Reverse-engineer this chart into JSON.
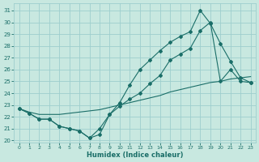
{
  "xlabel": "Humidex (Indice chaleur)",
  "bg_color": "#c8e8e0",
  "grid_color": "#9ecece",
  "line_color": "#1a6e68",
  "xlim": [
    -0.5,
    23.5
  ],
  "ylim": [
    19.8,
    31.6
  ],
  "xticks": [
    0,
    1,
    2,
    3,
    4,
    5,
    6,
    7,
    8,
    9,
    10,
    11,
    12,
    13,
    14,
    15,
    16,
    17,
    18,
    19,
    20,
    21,
    22,
    23
  ],
  "yticks": [
    20,
    21,
    22,
    23,
    24,
    25,
    26,
    27,
    28,
    29,
    30,
    31
  ],
  "series1_x": [
    0,
    1,
    2,
    3,
    4,
    5,
    6,
    7,
    8,
    9,
    10,
    11,
    12,
    13,
    14,
    15,
    16,
    17,
    18,
    19,
    20,
    21,
    22,
    23
  ],
  "series1_y": [
    22.7,
    22.3,
    21.8,
    21.8,
    21.2,
    21.0,
    20.8,
    20.2,
    20.5,
    22.2,
    22.9,
    23.5,
    24.0,
    24.8,
    25.5,
    26.8,
    27.3,
    27.8,
    29.3,
    30.0,
    25.0,
    26.0,
    25.0,
    24.9
  ],
  "series2_x": [
    0,
    1,
    2,
    3,
    4,
    5,
    6,
    7,
    8,
    9,
    10,
    11,
    12,
    13,
    14,
    15,
    16,
    17,
    18,
    19,
    20,
    21,
    22,
    23
  ],
  "series2_y": [
    22.7,
    22.3,
    21.8,
    21.8,
    21.2,
    21.0,
    20.8,
    20.2,
    21.0,
    22.2,
    23.2,
    24.7,
    26.0,
    26.8,
    27.6,
    28.3,
    28.8,
    29.2,
    31.0,
    29.9,
    28.2,
    26.7,
    25.3,
    24.9
  ],
  "series3_x": [
    0,
    1,
    2,
    3,
    4,
    5,
    6,
    7,
    8,
    9,
    10,
    11,
    12,
    13,
    14,
    15,
    16,
    17,
    18,
    19,
    20,
    21,
    22,
    23
  ],
  "series3_y": [
    22.7,
    22.4,
    22.2,
    22.2,
    22.2,
    22.3,
    22.4,
    22.5,
    22.6,
    22.8,
    23.0,
    23.2,
    23.4,
    23.6,
    23.8,
    24.1,
    24.3,
    24.5,
    24.7,
    24.9,
    25.0,
    25.2,
    25.3,
    25.4
  ]
}
